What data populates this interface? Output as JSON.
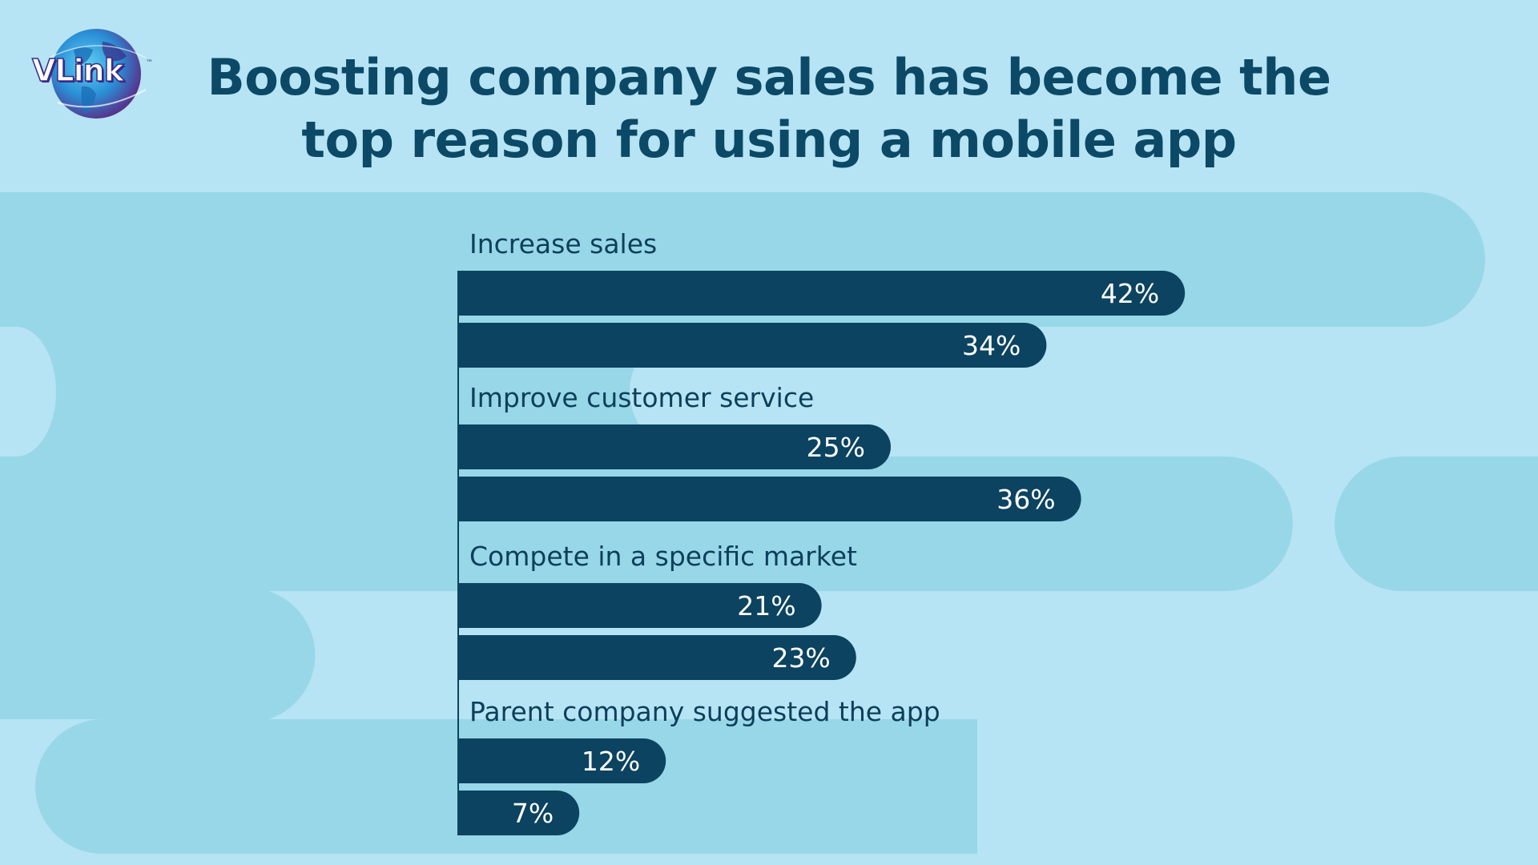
{
  "title_line1": "Boosting company sales has become the",
  "title_line2": "top reason for using a mobile app",
  "logo": {
    "text": "VLink",
    "tm": "™"
  },
  "colors": {
    "background": "#b6e4f4",
    "band": "#97d7e8",
    "bar": "#0b4360",
    "title": "#0b4966",
    "category_label": "#0c3f5a",
    "value_label": "#ffffff"
  },
  "chart_data": {
    "type": "bar",
    "orientation": "horizontal",
    "categories": [
      "Increase sales",
      "Improve customer service",
      "Compete in a specific market",
      "Parent company suggested the app"
    ],
    "values": [
      [
        42,
        34
      ],
      [
        25,
        36
      ],
      [
        21,
        23
      ],
      [
        12,
        7
      ]
    ],
    "value_suffix": "%",
    "grid": false,
    "legend": "none"
  }
}
